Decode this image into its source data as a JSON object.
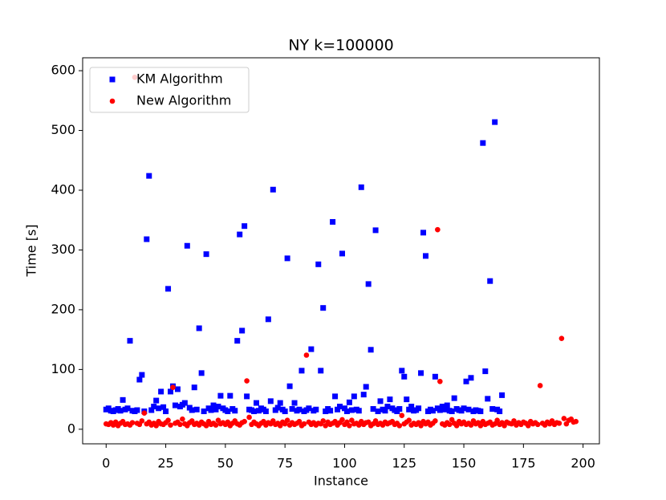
{
  "chart_data": {
    "type": "scatter",
    "title": "NY k=100000",
    "x_label": "Instance",
    "y_label": "Time [s]",
    "xlim": [
      -9.85,
      206.85
    ],
    "ylim": [
      -24.4,
      621.6
    ],
    "xticks": [
      0,
      25,
      50,
      75,
      100,
      125,
      150,
      175,
      200
    ],
    "yticks": [
      0,
      100,
      200,
      300,
      400,
      500,
      600
    ],
    "legend": "upper left",
    "series": [
      {
        "name": "KM Algorithm",
        "color": "#0000ff",
        "marker": "square",
        "x": [
          0,
          1,
          2,
          3,
          4,
          5,
          6,
          7,
          8,
          9,
          10,
          11,
          12,
          13,
          14,
          15,
          16,
          17,
          18,
          19,
          20,
          21,
          22,
          23,
          24,
          25,
          26,
          27,
          28,
          29,
          30,
          31,
          32,
          33,
          34,
          35,
          36,
          37,
          38,
          39,
          40,
          41,
          42,
          43,
          44,
          45,
          46,
          47,
          48,
          49,
          50,
          51,
          52,
          53,
          54,
          55,
          56,
          57,
          58,
          59,
          60,
          61,
          62,
          63,
          64,
          65,
          66,
          67,
          68,
          69,
          70,
          71,
          72,
          73,
          74,
          75,
          76,
          77,
          78,
          79,
          80,
          81,
          82,
          83,
          84,
          85,
          86,
          87,
          88,
          89,
          90,
          91,
          92,
          93,
          94,
          95,
          96,
          97,
          98,
          99,
          100,
          101,
          102,
          103,
          104,
          105,
          106,
          107,
          108,
          109,
          110,
          111,
          112,
          113,
          114,
          115,
          116,
          117,
          118,
          119,
          120,
          121,
          122,
          123,
          124,
          125,
          126,
          127,
          128,
          129,
          130,
          131,
          132,
          133,
          134,
          135,
          136,
          137,
          138,
          139,
          140,
          141,
          142,
          143,
          144,
          145,
          146,
          147,
          148,
          149,
          150,
          151,
          152,
          153,
          154,
          155,
          156,
          157,
          158,
          159,
          160,
          161,
          162,
          163,
          164,
          165,
          166
        ],
        "values": [
          33,
          35,
          31,
          30,
          32,
          34,
          31,
          49,
          33,
          35,
          148,
          31,
          30,
          32,
          83,
          91,
          30,
          318,
          424,
          32,
          38,
          48,
          35,
          63,
          37,
          30,
          235,
          63,
          72,
          40,
          67,
          38,
          41,
          44,
          307,
          36,
          32,
          70,
          33,
          169,
          94,
          30,
          293,
          35,
          32,
          40,
          33,
          38,
          56,
          35,
          32,
          30,
          56,
          34,
          31,
          148,
          326,
          165,
          340,
          55,
          33,
          32,
          30,
          44,
          31,
          35,
          33,
          30,
          184,
          47,
          401,
          32,
          36,
          44,
          33,
          30,
          286,
          72,
          34,
          44,
          31,
          33,
          98,
          30,
          32,
          35,
          134,
          31,
          33,
          276,
          98,
          203,
          30,
          34,
          31,
          347,
          55,
          33,
          38,
          294,
          35,
          30,
          45,
          32,
          55,
          33,
          31,
          405,
          58,
          71,
          243,
          133,
          34,
          333,
          30,
          47,
          33,
          31,
          38,
          50,
          35,
          32,
          30,
          34,
          98,
          88,
          50,
          33,
          38,
          31,
          32,
          35,
          94,
          329,
          290,
          30,
          33,
          31,
          88,
          35,
          32,
          38,
          33,
          40,
          31,
          30,
          52,
          34,
          32,
          31,
          35,
          80,
          33,
          86,
          30,
          32,
          31,
          30,
          479,
          97,
          51,
          248,
          34,
          514,
          33,
          30,
          57
        ]
      },
      {
        "name": "New Algorithm",
        "color": "#ff0000",
        "marker": "circle",
        "x": [
          0,
          1,
          2,
          3,
          4,
          5,
          6,
          7,
          8,
          9,
          10,
          11,
          12,
          13,
          14,
          15,
          16,
          17,
          18,
          19,
          20,
          21,
          22,
          23,
          24,
          25,
          26,
          27,
          28,
          29,
          30,
          31,
          32,
          33,
          34,
          35,
          36,
          37,
          38,
          39,
          40,
          41,
          42,
          43,
          44,
          45,
          46,
          47,
          48,
          49,
          50,
          51,
          52,
          53,
          54,
          55,
          56,
          57,
          58,
          59,
          60,
          61,
          62,
          63,
          64,
          65,
          66,
          67,
          68,
          69,
          70,
          71,
          72,
          73,
          74,
          75,
          76,
          77,
          78,
          79,
          80,
          81,
          82,
          83,
          84,
          85,
          86,
          87,
          88,
          89,
          90,
          91,
          92,
          93,
          94,
          95,
          96,
          97,
          98,
          99,
          100,
          101,
          102,
          103,
          104,
          105,
          106,
          107,
          108,
          109,
          110,
          111,
          112,
          113,
          114,
          115,
          116,
          117,
          118,
          119,
          120,
          121,
          122,
          123,
          124,
          125,
          126,
          127,
          128,
          129,
          130,
          131,
          132,
          133,
          134,
          135,
          136,
          137,
          138,
          139,
          140,
          141,
          142,
          143,
          144,
          145,
          146,
          147,
          148,
          149,
          150,
          151,
          152,
          153,
          154,
          155,
          156,
          157,
          158,
          159,
          160,
          161,
          162,
          163,
          164,
          165,
          166,
          167,
          168,
          169,
          170,
          171,
          172,
          173,
          174,
          175,
          176,
          177,
          178,
          179,
          180,
          181,
          182,
          183,
          184,
          185,
          186,
          187,
          188,
          189,
          190,
          191,
          192,
          193,
          194,
          195,
          196,
          197
        ],
        "values": [
          9,
          8,
          11,
          7,
          12,
          6,
          10,
          13,
          8,
          9,
          7,
          11,
          589,
          10,
          8,
          14,
          27,
          9,
          12,
          7,
          10,
          6,
          13,
          9,
          8,
          11,
          15,
          7,
          70,
          10,
          12,
          8,
          17,
          9,
          6,
          11,
          14,
          8,
          10,
          7,
          12,
          9,
          6,
          13,
          8,
          10,
          7,
          15,
          9,
          11,
          8,
          12,
          6,
          10,
          14,
          9,
          7,
          11,
          13,
          81,
          20,
          8,
          12,
          9,
          6,
          10,
          13,
          7,
          11,
          9,
          14,
          8,
          10,
          6,
          12,
          9,
          15,
          7,
          11,
          8,
          10,
          13,
          6,
          9,
          124,
          12,
          8,
          11,
          7,
          10,
          9,
          14,
          6,
          12,
          8,
          10,
          13,
          7,
          11,
          16,
          8,
          12,
          6,
          15,
          9,
          10,
          7,
          13,
          8,
          11,
          12,
          6,
          9,
          14,
          8,
          10,
          7,
          12,
          9,
          11,
          13,
          8,
          10,
          6,
          23,
          9,
          12,
          15,
          7,
          10,
          8,
          11,
          6,
          13,
          9,
          12,
          7,
          10,
          14,
          334,
          80,
          9,
          7,
          11,
          8,
          16,
          10,
          6,
          13,
          9,
          12,
          8,
          10,
          7,
          14,
          9,
          11,
          6,
          13,
          8,
          10,
          12,
          7,
          9,
          15,
          8,
          11,
          6,
          12,
          10,
          9,
          14,
          7,
          11,
          8,
          12,
          10,
          6,
          13,
          9,
          11,
          8,
          73,
          10,
          7,
          12,
          9,
          14,
          8,
          11,
          10,
          152,
          18,
          9,
          15,
          17,
          12,
          13
        ]
      }
    ]
  }
}
